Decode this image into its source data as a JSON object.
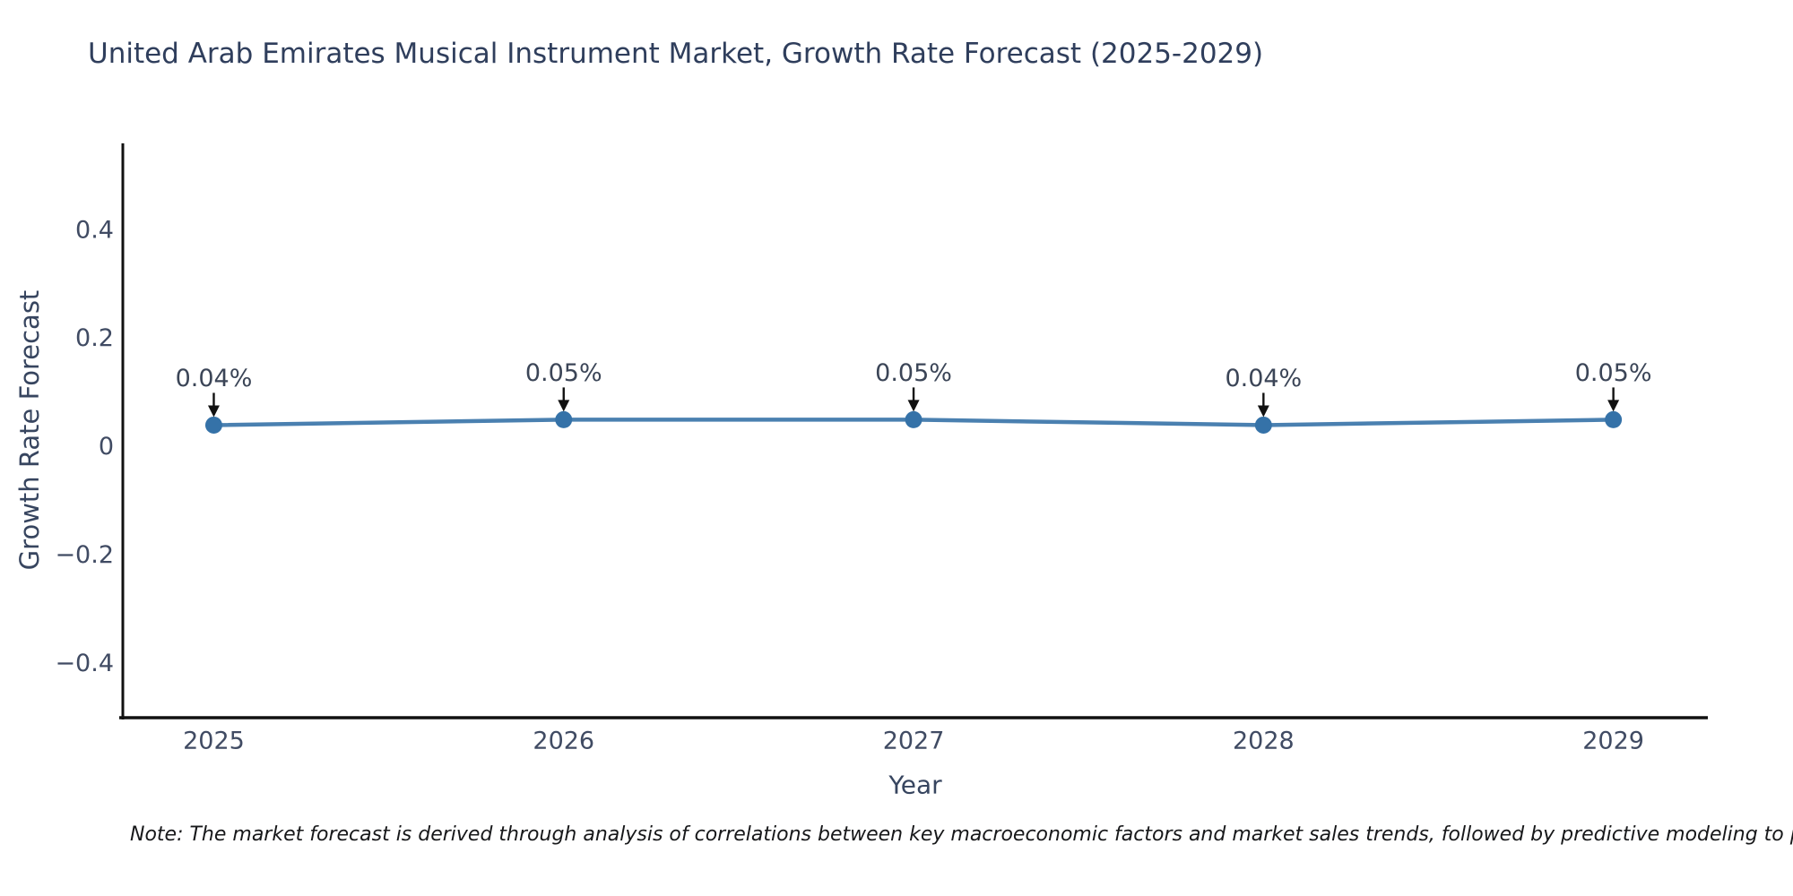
{
  "title": "United Arab Emirates Musical Instrument Market, Growth Rate Forecast (2025-2029)",
  "note": "Note: The market forecast is derived through analysis of correlations between key macroeconomic factors and market sales trends, followed by predictive modeling to project future sales",
  "chart_data": {
    "type": "line",
    "title": "United Arab Emirates Musical Instrument Market, Growth Rate Forecast (2025-2029)",
    "xlabel": "Year",
    "ylabel": "Growth Rate Forecast",
    "categories": [
      2025,
      2026,
      2027,
      2028,
      2029
    ],
    "series": [
      {
        "name": "Growth Rate Forecast",
        "values": [
          0.04,
          0.05,
          0.05,
          0.04,
          0.05
        ],
        "point_labels": [
          "0.04%",
          "0.05%",
          "0.05%",
          "0.04%",
          "0.05%"
        ]
      }
    ],
    "xlim": [
      2024.74,
      2029.27
    ],
    "ylim": [
      -0.5,
      0.56
    ],
    "yticks": [
      0.4,
      0.2,
      0,
      -0.2,
      -0.4
    ],
    "ytick_labels": [
      "0.4",
      "0.2",
      "0",
      "−0.2",
      "−0.4"
    ],
    "xtick_labels": [
      "2025",
      "2026",
      "2027",
      "2028",
      "2029"
    ],
    "grid": false,
    "legend": "none",
    "annotation_arrow": "down",
    "colors": {
      "line": "#4a80b0",
      "marker": "#3572a8",
      "spine": "#111111",
      "arrow": "#111111",
      "tick_text": "#404b63",
      "title_text": "#2f3e5c",
      "annotation_text": "#3b4557",
      "background": "#ffffff"
    }
  }
}
